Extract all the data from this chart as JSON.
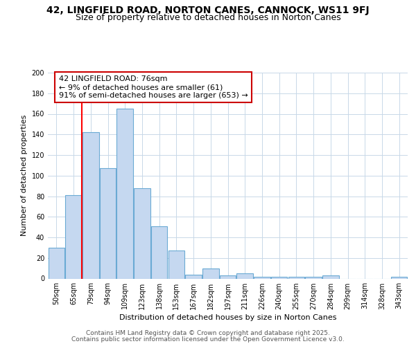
{
  "title_line1": "42, LINGFIELD ROAD, NORTON CANES, CANNOCK, WS11 9FJ",
  "title_line2": "Size of property relative to detached houses in Norton Canes",
  "xlabel": "Distribution of detached houses by size in Norton Canes",
  "ylabel": "Number of detached properties",
  "categories": [
    "50sqm",
    "65sqm",
    "79sqm",
    "94sqm",
    "109sqm",
    "123sqm",
    "138sqm",
    "153sqm",
    "167sqm",
    "182sqm",
    "197sqm",
    "211sqm",
    "226sqm",
    "240sqm",
    "255sqm",
    "270sqm",
    "284sqm",
    "299sqm",
    "314sqm",
    "328sqm",
    "343sqm"
  ],
  "values": [
    30,
    81,
    142,
    107,
    165,
    88,
    51,
    27,
    4,
    10,
    3,
    5,
    2,
    2,
    2,
    2,
    3,
    0,
    0,
    0,
    2
  ],
  "bar_color": "#c5d8f0",
  "bar_edge_color": "#6aaad4",
  "red_line_x": 1.5,
  "annotation_text": "42 LINGFIELD ROAD: 76sqm\n← 9% of detached houses are smaller (61)\n91% of semi-detached houses are larger (653) →",
  "annotation_box_color": "#ffffff",
  "annotation_box_edge": "#cc0000",
  "footer_line1": "Contains HM Land Registry data © Crown copyright and database right 2025.",
  "footer_line2": "Contains public sector information licensed under the Open Government Licence v3.0.",
  "background_color": "#ffffff",
  "grid_color": "#c8d8e8",
  "ylim": [
    0,
    200
  ],
  "yticks": [
    0,
    20,
    40,
    60,
    80,
    100,
    120,
    140,
    160,
    180,
    200
  ],
  "title1_fontsize": 10,
  "title2_fontsize": 9,
  "ylabel_fontsize": 8,
  "xlabel_fontsize": 8,
  "tick_fontsize": 7,
  "footer_fontsize": 6.5,
  "ann_fontsize": 8
}
